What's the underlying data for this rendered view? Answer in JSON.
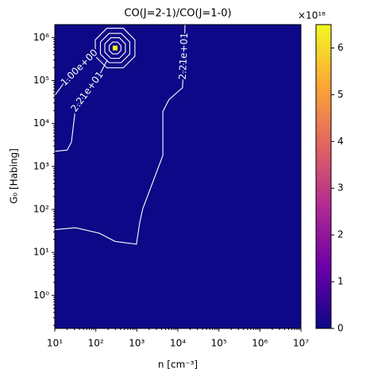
{
  "chart_data": {
    "type": "heatmap",
    "title": "CO(J=2-1)/CO(J=1-0)",
    "xlabel": "n [cm⁻³]",
    "ylabel": "G₀ [Habing]",
    "xscale": "log",
    "yscale": "log",
    "xlim": [
      10,
      10000000
    ],
    "ylim": [
      0.17,
      2000000
    ],
    "xticks": [
      {
        "value": 10,
        "label": "10¹"
      },
      {
        "value": 100,
        "label": "10²"
      },
      {
        "value": 1000,
        "label": "10³"
      },
      {
        "value": 10000,
        "label": "10⁴"
      },
      {
        "value": 100000,
        "label": "10⁵"
      },
      {
        "value": 1000000,
        "label": "10⁶"
      },
      {
        "value": 10000000,
        "label": "10⁷"
      }
    ],
    "yticks": [
      {
        "value": 1,
        "label": "10⁰"
      },
      {
        "value": 10,
        "label": "10¹"
      },
      {
        "value": 100,
        "label": "10²"
      },
      {
        "value": 1000,
        "label": "10³"
      },
      {
        "value": 10000,
        "label": "10⁴"
      },
      {
        "value": 100000,
        "label": "10⁵"
      },
      {
        "value": 1000000,
        "label": "10⁶"
      }
    ],
    "colormap": [
      "#0d0887",
      "#6a00a8",
      "#b12a90",
      "#e16462",
      "#fca636",
      "#f0f921"
    ],
    "background_value": 0,
    "peak": {
      "x": 295,
      "y": 570000,
      "value": 6.5
    },
    "colorbar": {
      "multiplier": "×10¹⁸",
      "clim": [
        0,
        6.5
      ],
      "ticks": [
        0,
        1,
        2,
        3,
        4,
        5,
        6
      ]
    },
    "contours": [
      {
        "label": "2.21e+01",
        "level": 22.1,
        "x": [
          10,
          32,
          121,
          295,
          980,
          1170,
          1400,
          4300,
          4300,
          6100,
          13000,
          15000
        ],
        "y": [
          34,
          37.5,
          28,
          18,
          15.5,
          49,
          105,
          1800,
          19000,
          36000,
          68000,
          2000000
        ]
      },
      {
        "label": "2.21e+01",
        "level": 22.1,
        "x": [
          10,
          20,
          25.5,
          32,
          121,
          190
        ],
        "y": [
          2250,
          2400,
          3700,
          23000,
          130000,
          300000
        ]
      },
      {
        "label": "1.00e+00",
        "level": 1,
        "x": [
          10,
          16.3,
          97
        ],
        "y": [
          45000,
          85000,
          460000
        ]
      }
    ]
  }
}
